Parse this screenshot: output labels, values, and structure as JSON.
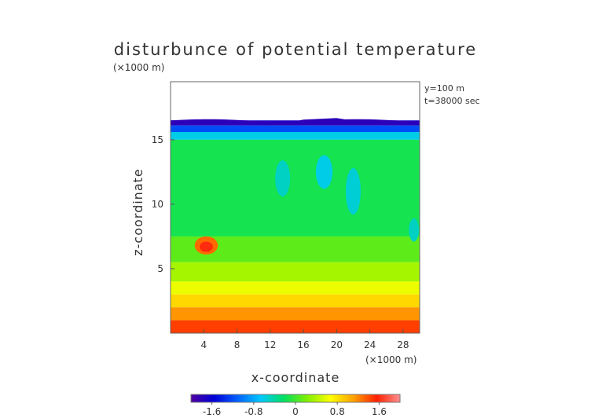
{
  "chart_data": {
    "type": "heatmap",
    "title": "disturbunce of potential temperature",
    "xlabel": "x-coordinate",
    "ylabel": "z-coordinate",
    "x_unit": "(×1000 m)",
    "y_unit": "(×1000 m)",
    "annotations": [
      "y=100 m",
      "t=38000 sec"
    ],
    "xlim": [
      0,
      30
    ],
    "ylim": [
      0,
      19.5
    ],
    "x_ticks": [
      4,
      8,
      12,
      16,
      20,
      24,
      28
    ],
    "y_ticks": [
      5,
      10,
      15
    ],
    "colorbar": {
      "range": [
        -2,
        2
      ],
      "ticks": [
        -1.6,
        -0.8,
        0,
        0.8,
        1.6
      ],
      "tick_labels": [
        "-1.6",
        "-0.8",
        "0",
        "0.8",
        "1.6"
      ]
    },
    "colors": {
      "stops": [
        "#5000a0",
        "#0000d8",
        "#0060ff",
        "#00c8ff",
        "#00e060",
        "#80f000",
        "#ffff00",
        "#ffa000",
        "#ff2000",
        "#ff9090"
      ]
    },
    "field": {
      "data_top_z": 16.5,
      "layers": [
        {
          "z": [
            16.1,
            16.5
          ],
          "value": -1.7
        },
        {
          "z": [
            15.6,
            16.1
          ],
          "value": -1.2
        },
        {
          "z": [
            15.0,
            15.6
          ],
          "value": -0.6
        },
        {
          "z": [
            7.5,
            15.0
          ],
          "value": -0.15
        },
        {
          "z": [
            5.5,
            7.5
          ],
          "value": 0.1
        },
        {
          "z": [
            4.0,
            5.5
          ],
          "value": 0.35
        },
        {
          "z": [
            3.0,
            4.0
          ],
          "value": 0.6
        },
        {
          "z": [
            2.0,
            3.0
          ],
          "value": 0.85
        },
        {
          "z": [
            1.0,
            2.0
          ],
          "value": 1.15
        },
        {
          "z": [
            0.0,
            1.0
          ],
          "value": 1.45
        }
      ],
      "anomalies": [
        {
          "x": 4.3,
          "z": 6.8,
          "rx": 1.4,
          "rz": 0.7,
          "value": 1.3
        },
        {
          "x": 4.3,
          "z": 6.7,
          "rx": 0.8,
          "rz": 0.4,
          "value": 1.6
        },
        {
          "x": 13.5,
          "z": 12.0,
          "rx": 0.9,
          "rz": 1.4,
          "value": -0.5
        },
        {
          "x": 18.5,
          "z": 12.5,
          "rx": 1.0,
          "rz": 1.3,
          "value": -0.6
        },
        {
          "x": 22.0,
          "z": 11.0,
          "rx": 0.9,
          "rz": 1.8,
          "value": -0.55
        },
        {
          "x": 29.3,
          "z": 8.0,
          "rx": 0.6,
          "rz": 0.9,
          "value": -0.5
        }
      ]
    }
  }
}
